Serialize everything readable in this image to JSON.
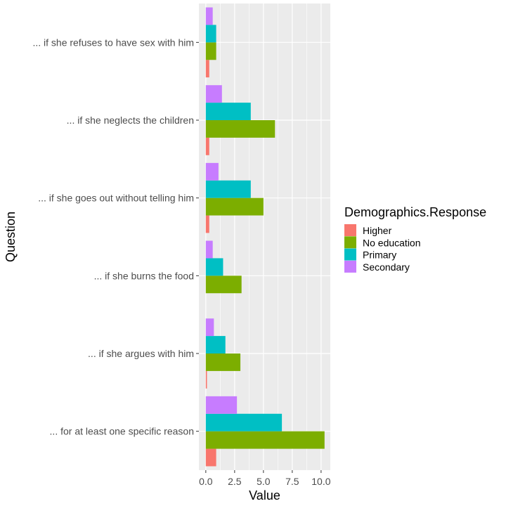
{
  "chart_data": {
    "type": "bar",
    "orientation": "horizontal",
    "categories": [
      "... if she refuses to have sex with him",
      "... if she neglects the children",
      "... if she goes out without telling him",
      "... if she burns the food",
      "... if she argues with him",
      "... for at least one specific reason"
    ],
    "series": [
      {
        "name": "Higher",
        "color": "#F8766D",
        "values": [
          0.3,
          0.3,
          0.3,
          0.0,
          0.1,
          0.9
        ]
      },
      {
        "name": "No education",
        "color": "#7CAE00",
        "values": [
          0.9,
          6.0,
          5.0,
          3.1,
          3.0,
          10.3
        ]
      },
      {
        "name": "Primary",
        "color": "#00BFC4",
        "values": [
          0.9,
          3.9,
          3.9,
          1.5,
          1.7,
          6.6
        ]
      },
      {
        "name": "Secondary",
        "color": "#C77CFF",
        "values": [
          0.6,
          1.4,
          1.1,
          0.6,
          0.7,
          2.7
        ]
      }
    ],
    "xlabel": "Value",
    "ylabel": "Question",
    "xlim": [
      -0.6,
      10.8
    ],
    "xticks": [
      0.0,
      2.5,
      5.0,
      7.5,
      10.0
    ],
    "xtick_labels": [
      "0.0",
      "2.5",
      "5.0",
      "7.5",
      "10.0"
    ],
    "legend_title": "Demographics.Response",
    "legend_position": "right",
    "grid": true,
    "panel_background": "#EBEBEB",
    "grid_color": "#FFFFFF"
  }
}
